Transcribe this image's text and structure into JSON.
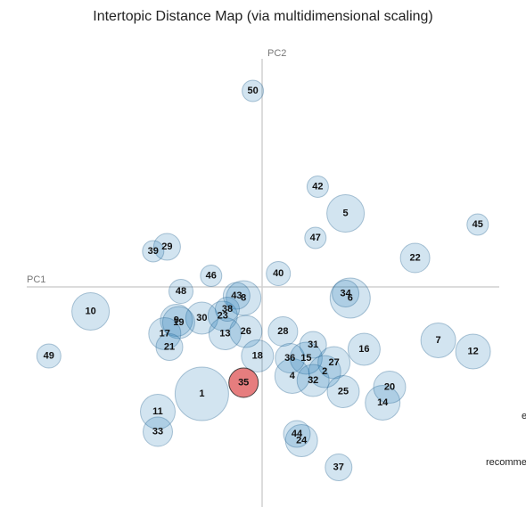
{
  "chart_data": {
    "type": "scatter",
    "title": "Intertopic Distance Map (via multidimensional scaling)",
    "xlabel": "PC1",
    "ylabel": "PC2",
    "colors": {
      "default_fill": "#1f77b4",
      "selected_fill": "#d62728",
      "axis": "#d0d0d0"
    },
    "selected_topic": "35",
    "points": [
      {
        "label": "50",
        "x": -0.04,
        "y": 0.88,
        "size": 0.35
      },
      {
        "label": "42",
        "x": 0.24,
        "y": 0.45,
        "size": 0.4
      },
      {
        "label": "5",
        "x": 0.36,
        "y": 0.33,
        "size": 0.7
      },
      {
        "label": "45",
        "x": 0.93,
        "y": 0.28,
        "size": 0.4
      },
      {
        "label": "47",
        "x": 0.23,
        "y": 0.22,
        "size": 0.35
      },
      {
        "label": "29",
        "x": -0.41,
        "y": 0.18,
        "size": 0.5
      },
      {
        "label": "39",
        "x": -0.47,
        "y": 0.16,
        "size": 0.4
      },
      {
        "label": "22",
        "x": 0.66,
        "y": 0.13,
        "size": 0.55
      },
      {
        "label": "46",
        "x": -0.22,
        "y": 0.05,
        "size": 0.4
      },
      {
        "label": "40",
        "x": 0.07,
        "y": 0.06,
        "size": 0.45
      },
      {
        "label": "34",
        "x": 0.36,
        "y": -0.03,
        "size": 0.5
      },
      {
        "label": "6",
        "x": 0.38,
        "y": -0.05,
        "size": 0.75
      },
      {
        "label": "48",
        "x": -0.35,
        "y": -0.02,
        "size": 0.45
      },
      {
        "label": "43",
        "x": -0.11,
        "y": -0.04,
        "size": 0.5
      },
      {
        "label": "8",
        "x": -0.08,
        "y": -0.05,
        "size": 0.65
      },
      {
        "label": "10",
        "x": -0.74,
        "y": -0.11,
        "size": 0.7
      },
      {
        "label": "38",
        "x": -0.15,
        "y": -0.1,
        "size": 0.45
      },
      {
        "label": "23",
        "x": -0.17,
        "y": -0.13,
        "size": 0.55
      },
      {
        "label": "30",
        "x": -0.26,
        "y": -0.14,
        "size": 0.6
      },
      {
        "label": "9",
        "x": -0.37,
        "y": -0.15,
        "size": 0.6
      },
      {
        "label": "19",
        "x": -0.36,
        "y": -0.16,
        "size": 0.6
      },
      {
        "label": "17",
        "x": -0.42,
        "y": -0.21,
        "size": 0.6
      },
      {
        "label": "26",
        "x": -0.07,
        "y": -0.2,
        "size": 0.6
      },
      {
        "label": "13",
        "x": -0.16,
        "y": -0.21,
        "size": 0.6
      },
      {
        "label": "28",
        "x": 0.09,
        "y": -0.2,
        "size": 0.55
      },
      {
        "label": "21",
        "x": -0.4,
        "y": -0.27,
        "size": 0.5
      },
      {
        "label": "31",
        "x": 0.22,
        "y": -0.26,
        "size": 0.5
      },
      {
        "label": "7",
        "x": 0.76,
        "y": -0.24,
        "size": 0.65
      },
      {
        "label": "16",
        "x": 0.44,
        "y": -0.28,
        "size": 0.6
      },
      {
        "label": "12",
        "x": 0.91,
        "y": -0.29,
        "size": 0.65
      },
      {
        "label": "49",
        "x": -0.92,
        "y": -0.31,
        "size": 0.45
      },
      {
        "label": "18",
        "x": -0.02,
        "y": -0.31,
        "size": 0.6
      },
      {
        "label": "36",
        "x": 0.12,
        "y": -0.32,
        "size": 0.55
      },
      {
        "label": "15",
        "x": 0.19,
        "y": -0.32,
        "size": 0.6
      },
      {
        "label": "27",
        "x": 0.31,
        "y": -0.34,
        "size": 0.6
      },
      {
        "label": "2",
        "x": 0.27,
        "y": -0.38,
        "size": 0.6
      },
      {
        "label": "4",
        "x": 0.13,
        "y": -0.4,
        "size": 0.65
      },
      {
        "label": "32",
        "x": 0.22,
        "y": -0.42,
        "size": 0.6
      },
      {
        "label": "35",
        "x": -0.08,
        "y": -0.43,
        "size": 0.55
      },
      {
        "label": "1",
        "x": -0.26,
        "y": -0.48,
        "size": 1.0
      },
      {
        "label": "25",
        "x": 0.35,
        "y": -0.47,
        "size": 0.6
      },
      {
        "label": "20",
        "x": 0.55,
        "y": -0.45,
        "size": 0.6
      },
      {
        "label": "14",
        "x": 0.52,
        "y": -0.52,
        "size": 0.65
      },
      {
        "label": "11",
        "x": -0.45,
        "y": -0.56,
        "size": 0.65
      },
      {
        "label": "33",
        "x": -0.45,
        "y": -0.65,
        "size": 0.55
      },
      {
        "label": "44",
        "x": 0.15,
        "y": -0.66,
        "size": 0.5
      },
      {
        "label": "24",
        "x": 0.17,
        "y": -0.69,
        "size": 0.6
      },
      {
        "label": "37",
        "x": 0.33,
        "y": -0.81,
        "size": 0.5
      }
    ]
  },
  "side_labels": {
    "fragment_1": "e",
    "fragment_2": "recomme"
  }
}
